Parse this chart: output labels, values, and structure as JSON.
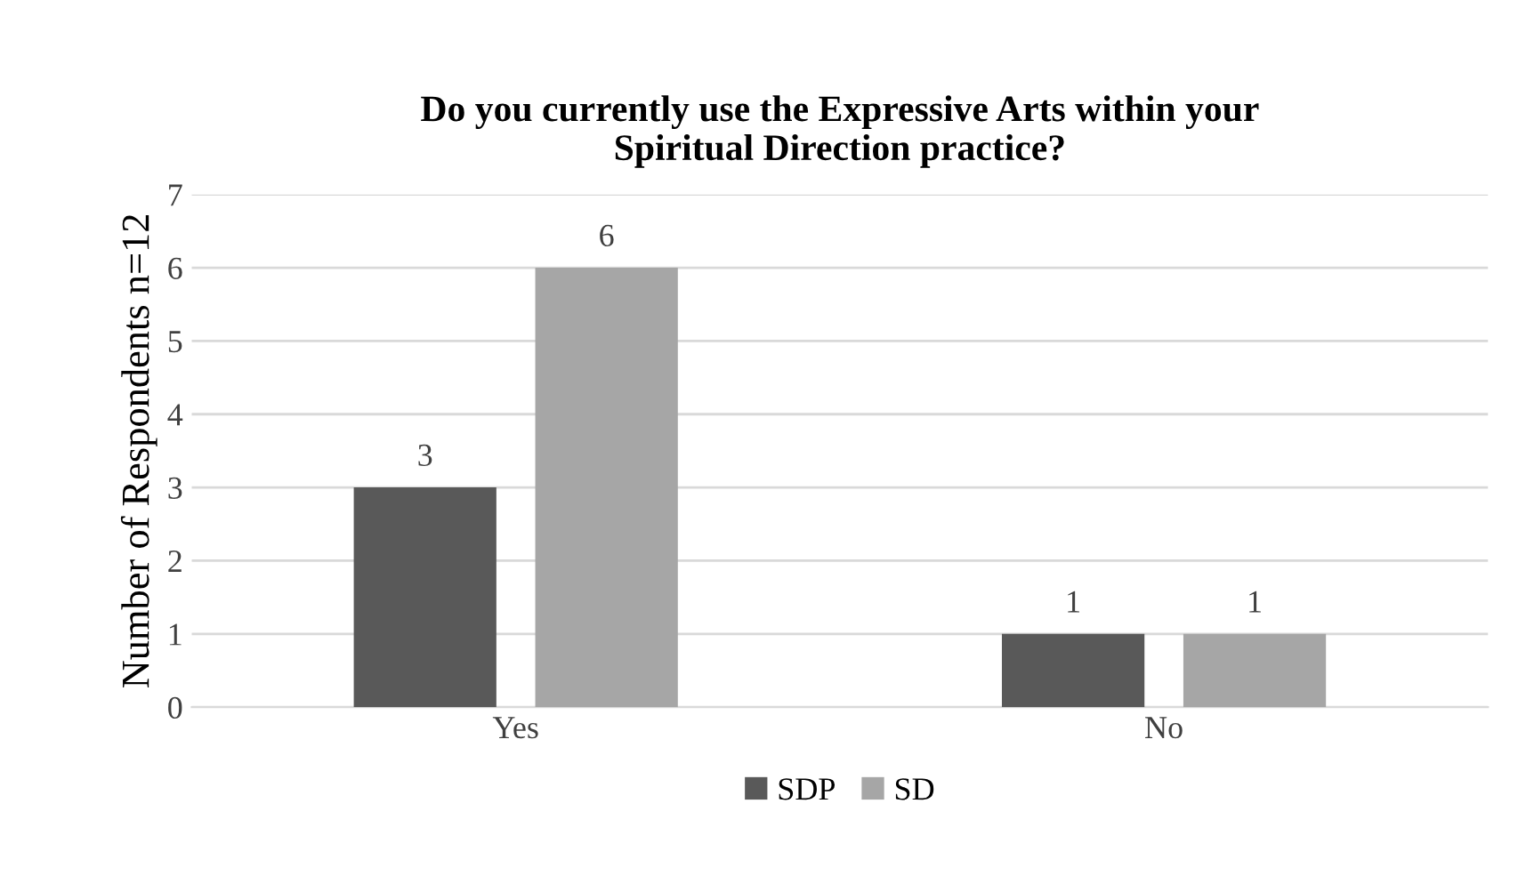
{
  "chart_data": {
    "type": "bar",
    "title": "Do you currently use the Expressive Arts within your\nSpiritual Direction practice?",
    "ylabel": "Number of Respondents n=12",
    "categories": [
      "Yes",
      "No"
    ],
    "series": [
      {
        "name": "SDP",
        "color": "#595959",
        "values": [
          3,
          1
        ]
      },
      {
        "name": "SD",
        "color": "#a6a6a6",
        "values": [
          6,
          1
        ]
      }
    ],
    "ylim": [
      0,
      7
    ],
    "yticks": [
      0,
      1,
      2,
      3,
      4,
      5,
      6,
      7
    ],
    "grid": "y",
    "legend": "bottom",
    "data_labels": true
  }
}
